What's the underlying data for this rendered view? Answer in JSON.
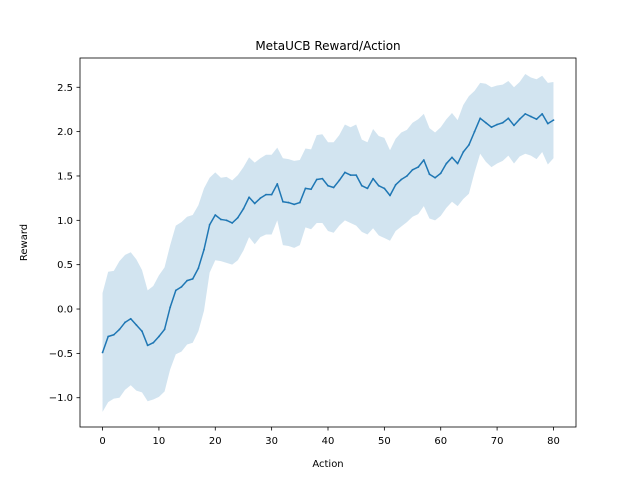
{
  "chart_data": {
    "type": "line",
    "title": "MetaUCB Reward/Action",
    "xlabel": "Action",
    "ylabel": "Reward",
    "xlim": [
      -4,
      84
    ],
    "ylim": [
      -1.33,
      2.83
    ],
    "xticks": [
      0,
      10,
      20,
      30,
      40,
      50,
      60,
      70,
      80
    ],
    "xtick_labels": [
      "0",
      "10",
      "20",
      "30",
      "40",
      "50",
      "60",
      "70",
      "80"
    ],
    "yticks": [
      -1.0,
      -0.5,
      0.0,
      0.5,
      1.0,
      1.5,
      2.0,
      2.5
    ],
    "ytick_labels": [
      "−1.0",
      "−0.5",
      "0.0",
      "0.5",
      "1.0",
      "1.5",
      "2.0",
      "2.5"
    ],
    "grid": false,
    "series": [
      {
        "color": "#1f77b4",
        "band_color": "#1f77b4",
        "band_opacity": 0.2,
        "x": [
          0,
          1,
          2,
          3,
          4,
          5,
          6,
          7,
          8,
          9,
          10,
          11,
          12,
          13,
          14,
          15,
          16,
          17,
          18,
          19,
          20,
          21,
          22,
          23,
          24,
          25,
          26,
          27,
          28,
          29,
          30,
          31,
          32,
          33,
          34,
          35,
          36,
          37,
          38,
          39,
          40,
          41,
          42,
          43,
          44,
          45,
          46,
          47,
          48,
          49,
          50,
          51,
          52,
          53,
          54,
          55,
          56,
          57,
          58,
          59,
          60,
          61,
          62,
          63,
          64,
          65,
          66,
          67,
          68,
          69,
          70,
          71,
          72,
          73,
          74,
          75,
          76,
          77,
          78,
          79,
          80
        ],
        "y": [
          -0.49,
          -0.31,
          -0.29,
          -0.23,
          -0.15,
          -0.11,
          -0.18,
          -0.25,
          -0.41,
          -0.38,
          -0.31,
          -0.23,
          0.02,
          0.21,
          0.25,
          0.32,
          0.34,
          0.46,
          0.67,
          0.95,
          1.06,
          1.01,
          1.0,
          0.97,
          1.03,
          1.13,
          1.26,
          1.19,
          1.25,
          1.29,
          1.29,
          1.41,
          1.21,
          1.2,
          1.18,
          1.2,
          1.36,
          1.35,
          1.46,
          1.47,
          1.39,
          1.37,
          1.45,
          1.54,
          1.51,
          1.51,
          1.39,
          1.36,
          1.47,
          1.39,
          1.36,
          1.28,
          1.4,
          1.46,
          1.5,
          1.57,
          1.6,
          1.68,
          1.52,
          1.48,
          1.53,
          1.64,
          1.71,
          1.64,
          1.77,
          1.85,
          2.0,
          2.15,
          2.1,
          2.05,
          2.08,
          2.1,
          2.15,
          2.07,
          2.14,
          2.2,
          2.17,
          2.14,
          2.2,
          2.09,
          2.13
        ],
        "upper": [
          0.18,
          0.42,
          0.43,
          0.54,
          0.61,
          0.64,
          0.56,
          0.44,
          0.21,
          0.26,
          0.38,
          0.47,
          0.72,
          0.94,
          0.98,
          1.04,
          1.06,
          1.17,
          1.36,
          1.48,
          1.54,
          1.48,
          1.49,
          1.45,
          1.51,
          1.6,
          1.71,
          1.65,
          1.7,
          1.74,
          1.74,
          1.82,
          1.7,
          1.69,
          1.67,
          1.68,
          1.81,
          1.8,
          1.96,
          1.97,
          1.88,
          1.88,
          1.96,
          2.08,
          2.05,
          2.08,
          1.91,
          1.88,
          2.03,
          1.95,
          1.93,
          1.79,
          1.92,
          1.99,
          2.02,
          2.1,
          2.14,
          2.2,
          2.04,
          1.99,
          2.05,
          2.14,
          2.21,
          2.13,
          2.3,
          2.4,
          2.46,
          2.55,
          2.54,
          2.5,
          2.52,
          2.53,
          2.57,
          2.5,
          2.56,
          2.65,
          2.61,
          2.59,
          2.63,
          2.55,
          2.56
        ],
        "lower": [
          -1.16,
          -1.05,
          -1.01,
          -1.0,
          -0.91,
          -0.86,
          -0.92,
          -0.94,
          -1.04,
          -1.02,
          -0.99,
          -0.93,
          -0.68,
          -0.51,
          -0.48,
          -0.4,
          -0.38,
          -0.25,
          -0.02,
          0.41,
          0.55,
          0.54,
          0.52,
          0.5,
          0.55,
          0.66,
          0.81,
          0.73,
          0.81,
          0.84,
          0.84,
          1.0,
          0.72,
          0.71,
          0.69,
          0.72,
          0.92,
          0.9,
          0.97,
          0.97,
          0.88,
          0.86,
          0.94,
          1.0,
          0.97,
          0.94,
          0.87,
          0.84,
          0.91,
          0.83,
          0.8,
          0.77,
          0.88,
          0.93,
          0.98,
          1.04,
          1.07,
          1.16,
          1.02,
          1.0,
          1.05,
          1.14,
          1.21,
          1.16,
          1.24,
          1.3,
          1.54,
          1.75,
          1.66,
          1.6,
          1.64,
          1.67,
          1.73,
          1.64,
          1.72,
          1.75,
          1.73,
          1.69,
          1.77,
          1.63,
          1.7
        ]
      }
    ]
  }
}
